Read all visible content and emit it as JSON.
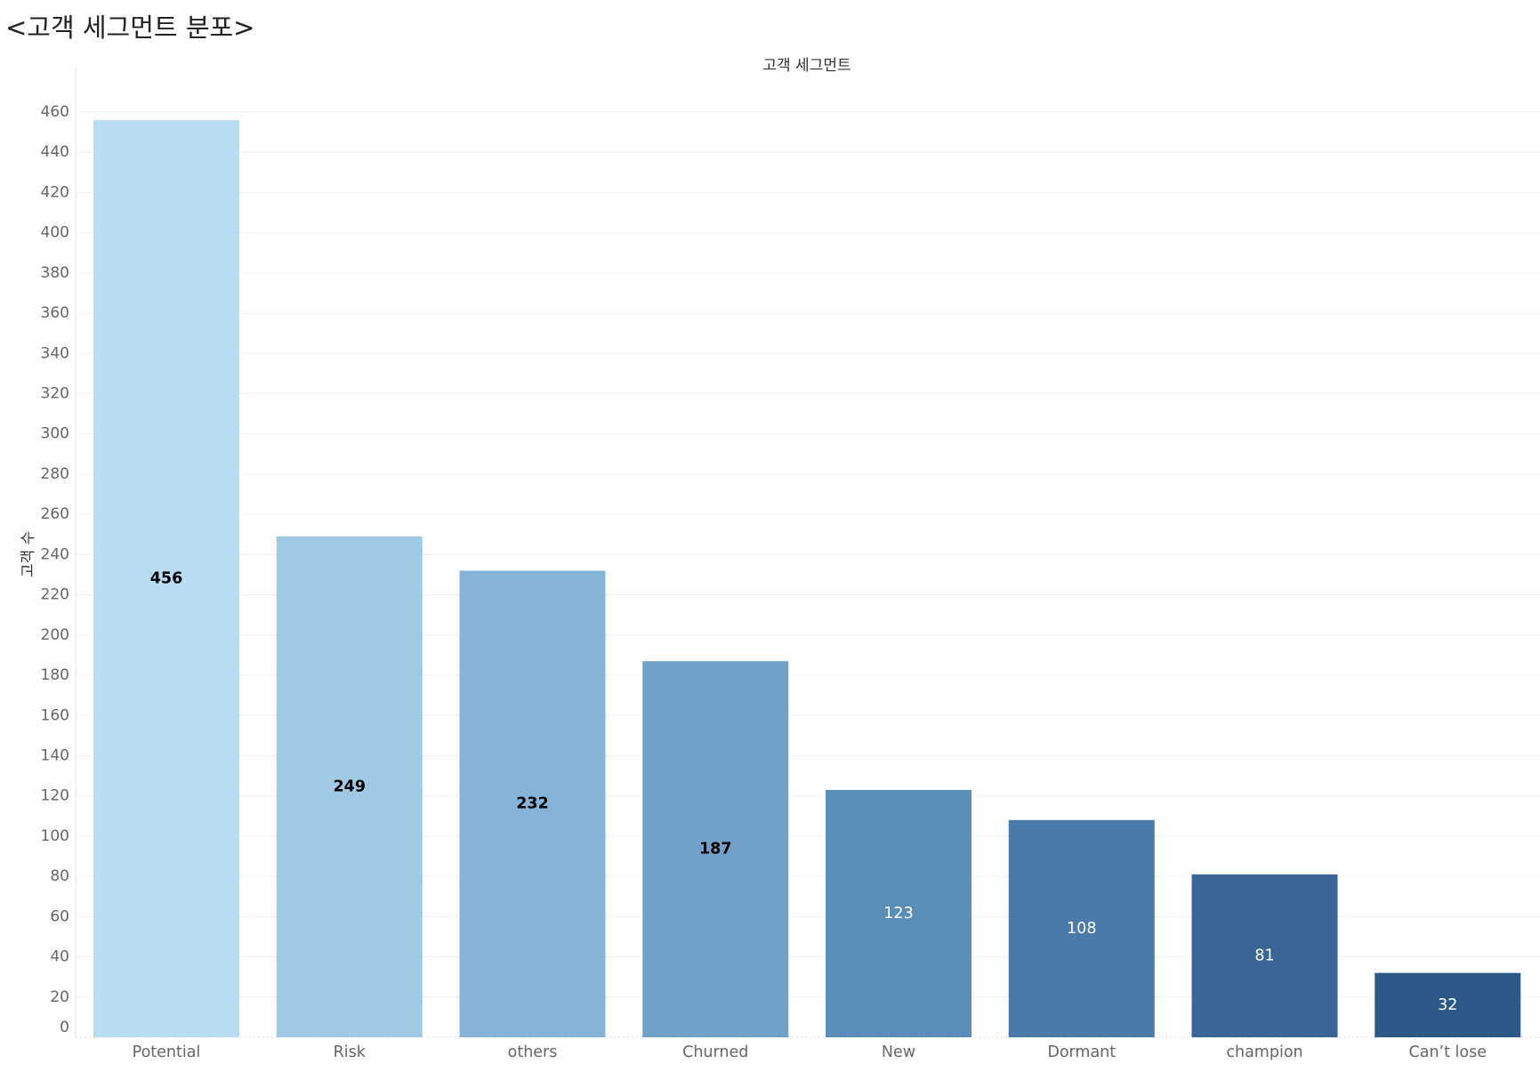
{
  "page_title": "<고객 세그먼트 분포>",
  "chart_data": {
    "type": "bar",
    "title": "고객 세그먼트",
    "xlabel": "",
    "ylabel": "고객 수",
    "ylim": [
      0,
      460
    ],
    "yticks": [
      0,
      20,
      40,
      60,
      80,
      100,
      120,
      140,
      160,
      180,
      200,
      220,
      240,
      260,
      280,
      300,
      320,
      340,
      360,
      380,
      400,
      420,
      440,
      460
    ],
    "grid": true,
    "categories": [
      "Potential",
      "Risk",
      "others",
      "Churned",
      "New",
      "Dormant",
      "champion",
      "Can’t lose"
    ],
    "values": [
      456,
      249,
      232,
      187,
      123,
      108,
      81,
      32
    ],
    "bar_colors": [
      "#b9ddf0",
      "#a0c9e5",
      "#86b4d9",
      "#71a1c8",
      "#5b8db9",
      "#4b7aaa",
      "#396696",
      "#2b5887"
    ],
    "label_colors": [
      "#000000",
      "#000000",
      "#000000",
      "#000000",
      "#ffffff",
      "#ffffff",
      "#ffffff",
      "#ffffff"
    ]
  }
}
